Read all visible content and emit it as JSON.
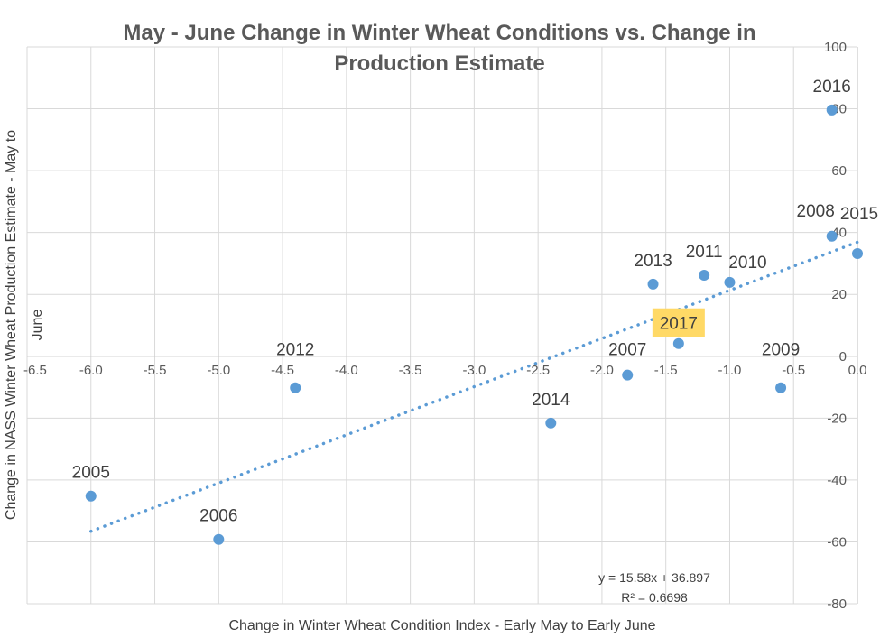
{
  "chart_data": {
    "type": "scatter",
    "title": "May - June Change in Winter Wheat Conditions vs. Change in Production Estimate",
    "title_lines": [
      "May - June Change in Winter Wheat Conditions vs. Change in",
      "Production Estimate"
    ],
    "xlabel": "Change in Winter Wheat Condition Index  - Early May to Early June",
    "ylabel_lines": [
      "Change in NASS Winter Wheat Production Estimate - May to",
      "June"
    ],
    "xlim": [
      -6.5,
      0.0
    ],
    "ylim": [
      -80,
      100
    ],
    "x_ticks": [
      "-6.5",
      "-6.0",
      "-5.5",
      "-5.0",
      "-4.5",
      "-4.0",
      "-3.5",
      "-3.0",
      "-2.5",
      "-2.0",
      "-1.5",
      "-1.0",
      "-0.5",
      "0.0"
    ],
    "y_ticks": [
      "-80",
      "-60",
      "-40",
      "-20",
      "0",
      "20",
      "40",
      "60",
      "80",
      "100"
    ],
    "grid": true,
    "y_axis_position": "right",
    "marker_color": "#5B9BD5",
    "highlight_color": "#FFD966",
    "points": [
      {
        "label": "2005",
        "x": -6.0,
        "y": -45.2
      },
      {
        "label": "2006",
        "x": -5.0,
        "y": -59.2
      },
      {
        "label": "2012",
        "x": -4.4,
        "y": -10.2
      },
      {
        "label": "2014",
        "x": -2.4,
        "y": -21.6
      },
      {
        "label": "2007",
        "x": -1.8,
        "y": -6.1
      },
      {
        "label": "2013",
        "x": -1.6,
        "y": 23.3
      },
      {
        "label": "2017",
        "x": -1.4,
        "y": 4.1,
        "highlight": true
      },
      {
        "label": "2011",
        "x": -1.2,
        "y": 26.2
      },
      {
        "label": "2010",
        "x": -1.0,
        "y": 23.9
      },
      {
        "label": "2009",
        "x": -0.6,
        "y": -10.2
      },
      {
        "label": "2016",
        "x": -0.2,
        "y": 79.6
      },
      {
        "label": "2008",
        "x": -0.2,
        "y": 38.8
      },
      {
        "label": "2015",
        "x": 0.0,
        "y": 33.2
      }
    ],
    "trendline": {
      "type": "linear",
      "style": "dotted",
      "slope": 15.58,
      "intercept": 36.897,
      "x_range": [
        -6.0,
        0.0
      ],
      "equation": "y = 15.58x + 36.897",
      "r_squared": "R² = 0.6698"
    }
  }
}
